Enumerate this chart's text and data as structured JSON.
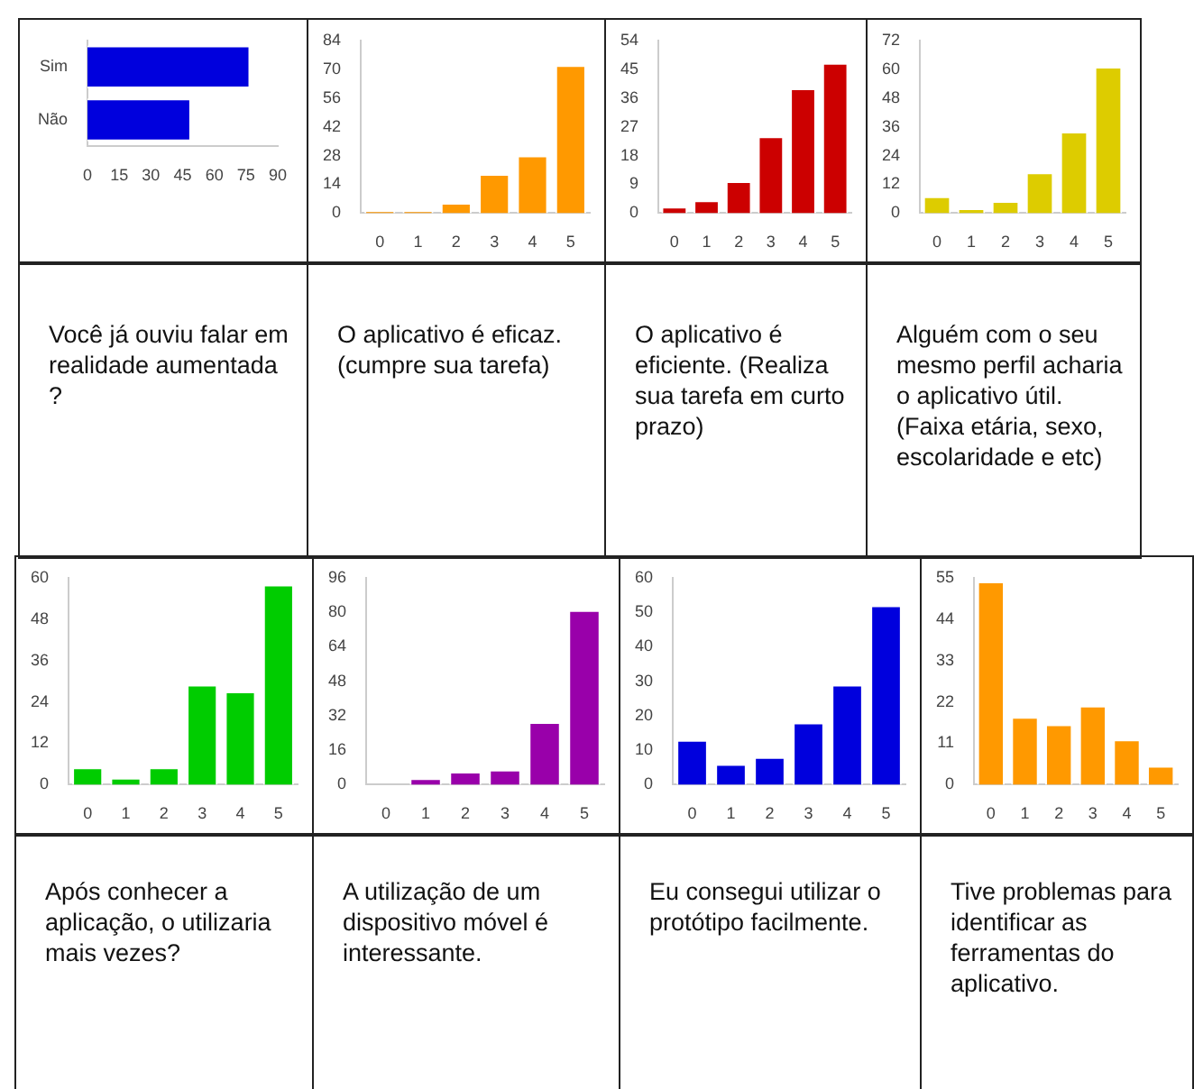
{
  "chart_data": [
    {
      "type": "bar",
      "title": "Você já ouviu falar em realidade aumentada ?",
      "categories": [
        "Sim",
        "Não"
      ],
      "orientation": "horizontal",
      "values": [
        77,
        49
      ],
      "color": "#0000dd",
      "xlim": [
        0,
        90
      ],
      "xticks": [
        0,
        15,
        30,
        45,
        60,
        75,
        90
      ],
      "grid": false,
      "legend": false
    },
    {
      "type": "bar",
      "title": "O aplicativo é eficaz. (cumpre sua tarefa)",
      "categories": [
        "0",
        "1",
        "2",
        "3",
        "4",
        "5"
      ],
      "values": [
        1,
        1,
        5,
        19,
        28,
        72
      ],
      "color": "#ff9900",
      "ylim": [
        0,
        84
      ],
      "yticks": [
        0,
        14,
        28,
        42,
        56,
        70,
        84
      ],
      "grid": false,
      "legend": false
    },
    {
      "type": "bar",
      "title": "O aplicativo é eficiente. (Realiza sua tarefa em curto prazo)",
      "categories": [
        "0",
        "1",
        "2",
        "3",
        "4",
        "5"
      ],
      "values": [
        2,
        4,
        10,
        24,
        39,
        47
      ],
      "color": "#cc0000",
      "ylim": [
        0,
        54
      ],
      "yticks": [
        0,
        9,
        18,
        27,
        36,
        45,
        54
      ],
      "grid": false,
      "legend": false
    },
    {
      "type": "bar",
      "title": "Alguém com o seu mesmo perfil acharia o aplicativo útil.(Faixa etária, sexo, escolaridade e etc)",
      "categories": [
        "0",
        "1",
        "2",
        "3",
        "4",
        "5"
      ],
      "values": [
        7,
        2,
        5,
        17,
        34,
        61
      ],
      "color": "#ddcc00",
      "ylim": [
        0,
        72
      ],
      "yticks": [
        0,
        12,
        24,
        36,
        48,
        60,
        72
      ],
      "grid": false,
      "legend": false
    },
    {
      "type": "bar",
      "title": "Após conhecer a aplicação, o utilizaria mais vezes?",
      "categories": [
        "0",
        "1",
        "2",
        "3",
        "4",
        "5"
      ],
      "values": [
        5,
        2,
        5,
        29,
        27,
        58
      ],
      "color": "#00cc00",
      "ylim": [
        0,
        60
      ],
      "yticks": [
        0,
        12,
        24,
        36,
        48,
        60
      ],
      "grid": false,
      "legend": false
    },
    {
      "type": "bar",
      "title": "A utilização de um dispositivo móvel é interessante.",
      "categories": [
        "0",
        "1",
        "2",
        "3",
        "4",
        "5"
      ],
      "values": [
        0,
        3,
        6,
        7,
        29,
        81
      ],
      "color": "#9900aa",
      "ylim": [
        0,
        96
      ],
      "yticks": [
        0,
        16,
        32,
        48,
        64,
        80,
        96
      ],
      "grid": false,
      "legend": false
    },
    {
      "type": "bar",
      "title": "Eu consegui utilizar o protótipo facilmente.",
      "categories": [
        "0",
        "1",
        "2",
        "3",
        "4",
        "5"
      ],
      "values": [
        13,
        6,
        8,
        18,
        29,
        52
      ],
      "color": "#0000dd",
      "ylim": [
        0,
        60
      ],
      "yticks": [
        0,
        10,
        20,
        30,
        40,
        50,
        60
      ],
      "grid": false,
      "legend": false
    },
    {
      "type": "bar",
      "title": "Tive problemas para identificar as ferramentas do aplicativo.",
      "categories": [
        "0",
        "1",
        "2",
        "3",
        "4",
        "5"
      ],
      "values": [
        54,
        18,
        16,
        21,
        12,
        5
      ],
      "color": "#ff9900",
      "ylim": [
        0,
        55
      ],
      "yticks": [
        0,
        11,
        22,
        33,
        44,
        55
      ],
      "grid": false,
      "legend": false
    }
  ]
}
